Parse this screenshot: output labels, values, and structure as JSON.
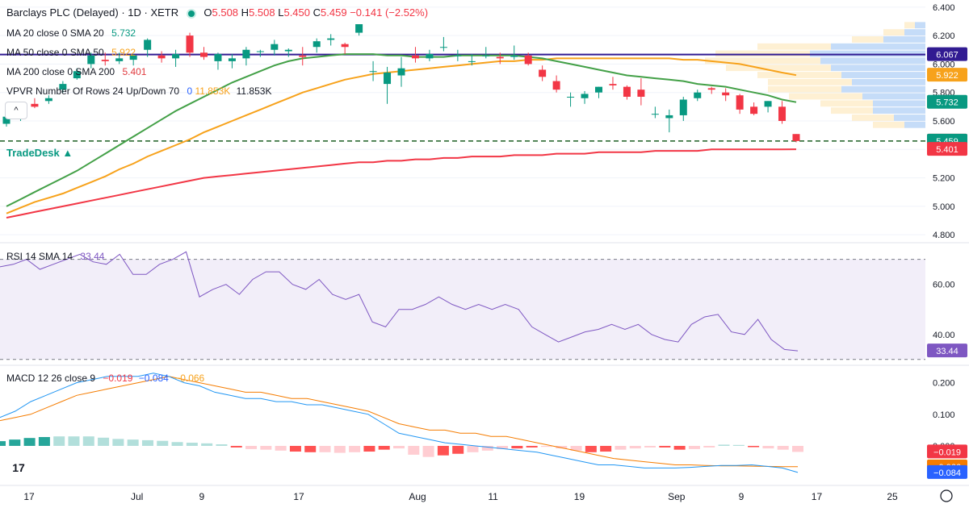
{
  "header": {
    "symbol": "Barclays PLC (Delayed) · 1D · XETR",
    "o_label": "O",
    "o_value": "5.508",
    "h_label": "H",
    "h_value": "5.508",
    "l_label": "L",
    "l_value": "5.450",
    "c_label": "C",
    "c_value": "5.459",
    "change": "−0.141 (−2.52%)"
  },
  "indicators": {
    "ma20": {
      "label": "MA 20 close 0 SMA 20",
      "value": "5.732",
      "color": "#4caf50"
    },
    "ma50": {
      "label": "MA 50 close 0 SMA 50",
      "value": "5.922",
      "color": "#f7a21b"
    },
    "ma200": {
      "label": "MA 200 close 0 SMA 200",
      "value": "5.401",
      "color": "#e03a3e"
    },
    "vpvr": {
      "label": "VPVR Number Of Rows 24 Up/Down 70",
      "v1": "0",
      "v2": "11.853K",
      "v3": "11.853K"
    },
    "rsi": {
      "label": "RSI 14 SMA 14",
      "value": "33.44",
      "color": "#7e57c2"
    },
    "macd": {
      "label": "MACD 12 26 close 9",
      "v1": "−0.019",
      "v2": "−0.084",
      "v3": "−0.066"
    }
  },
  "collapse_glyph": "^",
  "tradedesk": "TradeDesk ▲",
  "logo": "17",
  "chart_data": [
    {
      "type": "candlestick",
      "name": "price",
      "ylim": [
        4.75,
        6.45
      ],
      "yticks": [
        "6.400",
        "6.200",
        "6.000",
        "5.800",
        "5.600",
        "5.400",
        "5.200",
        "5.000",
        "4.800"
      ],
      "yticks_values": [
        6.4,
        6.2,
        6.0,
        5.8,
        5.6,
        5.4,
        5.2,
        5.0,
        4.8
      ],
      "candles": [
        [
          5.58,
          5.65,
          5.56,
          5.63
        ],
        [
          5.63,
          5.68,
          5.6,
          5.67
        ],
        [
          5.72,
          5.76,
          5.69,
          5.7
        ],
        [
          5.74,
          5.78,
          5.72,
          5.76
        ],
        [
          5.82,
          5.88,
          5.8,
          5.86
        ],
        [
          5.9,
          5.97,
          5.89,
          5.95
        ],
        [
          6.0,
          6.08,
          5.97,
          6.06
        ],
        [
          6.03,
          6.08,
          5.99,
          6.02
        ],
        [
          6.02,
          6.08,
          6.0,
          6.04
        ],
        [
          6.03,
          6.07,
          5.99,
          6.06
        ],
        [
          6.1,
          6.18,
          6.05,
          6.17
        ],
        [
          6.06,
          6.09,
          6.01,
          6.04
        ],
        [
          6.04,
          6.1,
          5.98,
          6.07
        ],
        [
          6.2,
          6.22,
          6.05,
          6.08
        ],
        [
          6.08,
          6.12,
          6.03,
          6.05
        ],
        [
          6.02,
          6.08,
          5.96,
          6.07
        ],
        [
          6.02,
          6.07,
          5.97,
          6.04
        ],
        [
          6.04,
          6.12,
          5.99,
          6.1
        ],
        [
          6.09,
          6.1,
          6.05,
          6.09
        ],
        [
          6.1,
          6.17,
          6.06,
          6.14
        ],
        [
          6.09,
          6.11,
          6.05,
          6.1
        ],
        [
          6.06,
          6.12,
          5.99,
          6.05
        ],
        [
          6.12,
          6.18,
          6.08,
          6.16
        ],
        [
          6.17,
          6.21,
          6.13,
          6.18
        ],
        [
          6.14,
          6.15,
          6.07,
          6.12
        ],
        [
          6.22,
          6.28,
          6.2,
          6.28
        ],
        [
          5.95,
          6.02,
          5.88,
          5.95
        ],
        [
          5.86,
          5.98,
          5.72,
          5.94
        ],
        [
          5.92,
          6.05,
          5.84,
          5.97
        ],
        [
          6.06,
          6.12,
          6.01,
          6.04
        ],
        [
          6.04,
          6.1,
          6.02,
          6.07
        ],
        [
          6.12,
          6.19,
          6.09,
          6.12
        ],
        [
          6.06,
          6.1,
          6.02,
          6.06
        ],
        [
          6.02,
          6.07,
          5.99,
          6.02
        ],
        [
          6.06,
          6.12,
          6.04,
          6.06
        ],
        [
          6.05,
          6.08,
          6.0,
          6.04
        ],
        [
          6.05,
          6.13,
          6.03,
          6.06
        ],
        [
          6.06,
          6.08,
          5.99,
          6.0
        ],
        [
          5.96,
          5.99,
          5.88,
          5.91
        ],
        [
          5.88,
          5.92,
          5.8,
          5.82
        ],
        [
          5.77,
          5.8,
          5.7,
          5.77
        ],
        [
          5.76,
          5.81,
          5.72,
          5.79
        ],
        [
          5.8,
          5.84,
          5.76,
          5.84
        ],
        [
          5.86,
          5.91,
          5.82,
          5.85
        ],
        [
          5.84,
          5.85,
          5.75,
          5.77
        ],
        [
          5.82,
          5.9,
          5.71,
          5.77
        ],
        [
          5.65,
          5.7,
          5.62,
          5.65
        ],
        [
          5.62,
          5.68,
          5.52,
          5.64
        ],
        [
          5.64,
          5.77,
          5.6,
          5.75
        ],
        [
          5.76,
          5.82,
          5.74,
          5.8
        ],
        [
          5.83,
          5.84,
          5.79,
          5.82
        ],
        [
          5.8,
          5.83,
          5.74,
          5.78
        ],
        [
          5.78,
          5.79,
          5.65,
          5.68
        ],
        [
          5.7,
          5.73,
          5.64,
          5.65
        ],
        [
          5.7,
          5.74,
          5.66,
          5.74
        ],
        [
          5.7,
          5.74,
          5.58,
          5.6
        ],
        [
          5.508,
          5.508,
          5.45,
          5.459
        ]
      ],
      "ma20_values": [
        5.0,
        5.05,
        5.1,
        5.15,
        5.2,
        5.25,
        5.31,
        5.37,
        5.43,
        5.49,
        5.55,
        5.61,
        5.67,
        5.72,
        5.77,
        5.82,
        5.87,
        5.91,
        5.95,
        5.99,
        6.02,
        6.04,
        6.05,
        6.06,
        6.07,
        6.07,
        6.07,
        6.06,
        6.06,
        6.05,
        6.05,
        6.05,
        6.06,
        6.06,
        6.06,
        6.06,
        6.06,
        6.05,
        6.04,
        6.02,
        6.0,
        5.98,
        5.96,
        5.94,
        5.92,
        5.91,
        5.9,
        5.89,
        5.88,
        5.86,
        5.85,
        5.84,
        5.82,
        5.8,
        5.78,
        5.75,
        5.732
      ],
      "ma50_values": [
        4.95,
        4.99,
        5.03,
        5.06,
        5.09,
        5.13,
        5.17,
        5.21,
        5.26,
        5.3,
        5.35,
        5.39,
        5.43,
        5.47,
        5.52,
        5.56,
        5.6,
        5.64,
        5.68,
        5.72,
        5.76,
        5.8,
        5.83,
        5.86,
        5.89,
        5.91,
        5.93,
        5.94,
        5.95,
        5.96,
        5.97,
        5.98,
        5.99,
        6.0,
        6.01,
        6.02,
        6.02,
        6.03,
        6.03,
        6.04,
        6.04,
        6.04,
        6.04,
        6.04,
        6.04,
        6.04,
        6.04,
        6.04,
        6.03,
        6.03,
        6.02,
        6.01,
        6.0,
        5.98,
        5.96,
        5.94,
        5.922
      ],
      "ma200_values": [
        4.92,
        4.94,
        4.96,
        4.98,
        5.0,
        5.02,
        5.04,
        5.06,
        5.08,
        5.1,
        5.12,
        5.14,
        5.16,
        5.18,
        5.2,
        5.21,
        5.22,
        5.23,
        5.24,
        5.25,
        5.26,
        5.27,
        5.28,
        5.29,
        5.3,
        5.31,
        5.31,
        5.32,
        5.32,
        5.33,
        5.33,
        5.34,
        5.34,
        5.35,
        5.35,
        5.35,
        5.36,
        5.36,
        5.36,
        5.37,
        5.37,
        5.37,
        5.38,
        5.38,
        5.38,
        5.38,
        5.39,
        5.39,
        5.39,
        5.39,
        5.4,
        5.4,
        5.4,
        5.4,
        5.4,
        5.4,
        5.401
      ],
      "price_labels": [
        {
          "text": "6.067",
          "value": 6.067,
          "color": "#311b92"
        },
        {
          "text": "5.922",
          "value": 5.922,
          "color": "#f7a21b"
        },
        {
          "text": "5.732",
          "value": 5.732,
          "color": "#089981"
        },
        {
          "text": "5.459",
          "value": 5.459,
          "color": "#f23645"
        },
        {
          "text": "5.459",
          "value": 5.459,
          "color": "#089981"
        },
        {
          "text": "5.401",
          "value": 5.401,
          "color": "#f23645"
        }
      ],
      "hline_value": 6.067,
      "last_price_dashed": 5.459,
      "volume_profile_rows": [
        [
          6.27,
          0.05,
          0.05
        ],
        [
          6.22,
          0.1,
          0.1
        ],
        [
          6.17,
          0.2,
          0.15
        ],
        [
          6.12,
          0.45,
          0.35
        ],
        [
          6.07,
          0.55,
          0.45
        ],
        [
          6.02,
          0.5,
          0.55
        ],
        [
          5.97,
          0.45,
          0.5
        ],
        [
          5.92,
          0.4,
          0.4
        ],
        [
          5.87,
          0.35,
          0.4
        ],
        [
          5.82,
          0.4,
          0.35
        ],
        [
          5.77,
          0.3,
          0.35
        ],
        [
          5.72,
          0.25,
          0.25
        ],
        [
          5.67,
          0.25,
          0.2
        ],
        [
          5.62,
          0.15,
          0.2
        ],
        [
          5.57,
          0.1,
          0.15
        ]
      ]
    },
    {
      "type": "line",
      "name": "RSI",
      "ylim": [
        28,
        76
      ],
      "yticks": [
        "60.00",
        "40.00"
      ],
      "yticks_values": [
        60,
        40
      ],
      "band": [
        30,
        70
      ],
      "values": [
        67,
        68,
        70,
        66,
        68,
        70,
        72,
        69,
        68,
        72,
        64,
        64,
        68,
        70,
        73,
        55,
        58,
        60,
        56,
        62,
        65,
        65,
        60,
        58,
        62,
        56,
        54,
        56,
        45,
        43,
        50,
        50,
        52,
        55,
        52,
        50,
        52,
        50,
        52,
        50,
        43,
        40,
        37,
        39,
        41,
        42,
        44,
        42,
        44,
        40,
        38,
        37,
        44,
        47,
        48,
        41,
        40,
        46,
        38,
        34,
        33.44
      ],
      "value_label": "33.44"
    },
    {
      "type": "line",
      "name": "MACD",
      "ylim": [
        -0.12,
        0.25
      ],
      "yticks": [
        "0.200",
        "0.100",
        "0.000"
      ],
      "yticks_values": [
        0.2,
        0.1,
        0.0
      ],
      "macd_values": [
        0.09,
        0.11,
        0.14,
        0.16,
        0.18,
        0.2,
        0.21,
        0.22,
        0.22,
        0.22,
        0.23,
        0.22,
        0.2,
        0.19,
        0.17,
        0.16,
        0.15,
        0.15,
        0.14,
        0.14,
        0.13,
        0.13,
        0.12,
        0.11,
        0.1,
        0.07,
        0.04,
        0.03,
        0.02,
        0.01,
        0.005,
        0.0,
        -0.005,
        -0.01,
        -0.015,
        -0.02,
        -0.03,
        -0.04,
        -0.05,
        -0.06,
        -0.06,
        -0.065,
        -0.07,
        -0.07,
        -0.07,
        -0.068,
        -0.065,
        -0.062,
        -0.062,
        -0.06,
        -0.065,
        -0.07,
        -0.084
      ],
      "signal_values": [
        0.08,
        0.09,
        0.1,
        0.12,
        0.14,
        0.16,
        0.17,
        0.18,
        0.19,
        0.2,
        0.21,
        0.22,
        0.21,
        0.2,
        0.19,
        0.18,
        0.17,
        0.17,
        0.16,
        0.15,
        0.15,
        0.14,
        0.13,
        0.12,
        0.11,
        0.09,
        0.07,
        0.06,
        0.05,
        0.05,
        0.04,
        0.04,
        0.03,
        0.03,
        0.02,
        0.01,
        0.0,
        -0.01,
        -0.02,
        -0.03,
        -0.04,
        -0.045,
        -0.05,
        -0.055,
        -0.06,
        -0.06,
        -0.062,
        -0.063,
        -0.063,
        -0.064,
        -0.065,
        -0.066,
        -0.066
      ],
      "histogram": [
        0.015,
        0.02,
        0.025,
        0.028,
        0.03,
        0.03,
        0.03,
        0.026,
        0.022,
        0.02,
        0.018,
        0.016,
        0.012,
        0.01,
        0.008,
        0.005,
        -0.005,
        -0.01,
        -0.012,
        -0.015,
        -0.018,
        -0.02,
        -0.02,
        -0.022,
        -0.02,
        -0.018,
        -0.012,
        -0.008,
        -0.028,
        -0.035,
        -0.03,
        -0.025,
        -0.02,
        -0.015,
        -0.01,
        -0.008,
        -0.005,
        -0.003,
        -0.008,
        -0.015,
        -0.02,
        -0.018,
        -0.012,
        -0.008,
        -0.005,
        -0.005,
        -0.012,
        -0.01,
        -0.005,
        0.004,
        0.003,
        -0.004,
        -0.008,
        -0.012,
        -0.019
      ],
      "value_labels": [
        {
          "text": "−0.019",
          "value": -0.019,
          "color": "#f23645"
        },
        {
          "text": "−0.066",
          "value": -0.066,
          "color": "#f57c00"
        },
        {
          "text": "−0.084",
          "value": -0.084,
          "color": "#2962ff"
        }
      ]
    }
  ],
  "time_axis": {
    "labels": [
      "17",
      "Jul",
      "9",
      "17",
      "Aug",
      "11",
      "19",
      "Sep",
      "9",
      "17",
      "25"
    ],
    "positions_days": [
      0,
      10,
      16,
      25,
      36,
      43,
      51,
      60,
      66,
      73,
      80
    ]
  }
}
